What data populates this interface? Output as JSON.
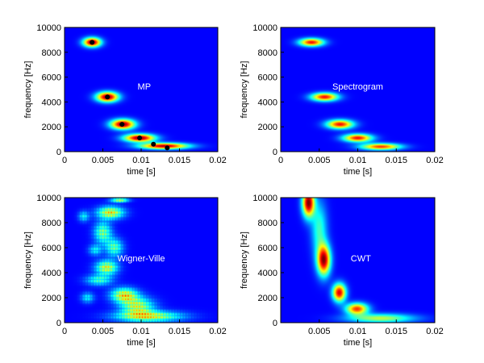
{
  "chart_data": [
    {
      "type": "heatmap",
      "title": "MP",
      "xlabel": "time [s]",
      "ylabel": "frequency [Hz]",
      "xlim": [
        0,
        0.02
      ],
      "ylim": [
        0,
        10000
      ],
      "xticks": [
        "0",
        "0.005",
        "0.01",
        "0.015",
        "0.02"
      ],
      "yticks": [
        "0",
        "2000",
        "4000",
        "6000",
        "8000",
        "10000"
      ],
      "colormap": "jet",
      "background": "#00008f",
      "blobs": [
        {
          "t": 0.0036,
          "f": 8800,
          "dt": 0.0008,
          "df": 260,
          "a": 1.0
        },
        {
          "t": 0.0056,
          "f": 4400,
          "dt": 0.001,
          "df": 280,
          "a": 1.0
        },
        {
          "t": 0.0076,
          "f": 2200,
          "dt": 0.0011,
          "df": 280,
          "a": 1.0
        },
        {
          "t": 0.0098,
          "f": 1100,
          "dt": 0.0014,
          "df": 220,
          "a": 1.0
        },
        {
          "t": 0.013,
          "f": 450,
          "dt": 0.0022,
          "df": 170,
          "a": 0.95
        }
      ],
      "markers": [
        {
          "t": 0.0036,
          "f": 8800
        },
        {
          "t": 0.0056,
          "f": 4400
        },
        {
          "t": 0.0075,
          "f": 2200
        },
        {
          "t": 0.0098,
          "f": 1100
        },
        {
          "t": 0.0116,
          "f": 600
        },
        {
          "t": 0.0134,
          "f": 300
        }
      ]
    },
    {
      "type": "heatmap",
      "title": "Spectrogram",
      "xlabel": "time [s]",
      "ylabel": "frequency [Hz]",
      "xlim": [
        0,
        0.02
      ],
      "ylim": [
        0,
        10000
      ],
      "xticks": [
        "0",
        "0.005",
        "0.01",
        "0.015",
        "0.02"
      ],
      "yticks": [
        "0",
        "2000",
        "4000",
        "6000",
        "8000",
        "10000"
      ],
      "colormap": "jet",
      "background": "#00008f",
      "blobs": [
        {
          "t": 0.004,
          "f": 8800,
          "dt": 0.0011,
          "df": 220,
          "a": 0.85
        },
        {
          "t": 0.0057,
          "f": 4400,
          "dt": 0.0012,
          "df": 230,
          "a": 0.85
        },
        {
          "t": 0.0077,
          "f": 2200,
          "dt": 0.0012,
          "df": 250,
          "a": 0.85
        },
        {
          "t": 0.01,
          "f": 1100,
          "dt": 0.0013,
          "df": 220,
          "a": 0.85
        },
        {
          "t": 0.013,
          "f": 400,
          "dt": 0.0018,
          "df": 180,
          "a": 0.8
        }
      ],
      "markers": []
    },
    {
      "type": "heatmap",
      "title": "Wigner-Ville",
      "xlabel": "time [s]",
      "ylabel": "frequency [Hz]",
      "xlim": [
        0,
        0.02
      ],
      "ylim": [
        0,
        10000
      ],
      "xticks": [
        "0",
        "0.005",
        "0.01",
        "0.015",
        "0.02"
      ],
      "yticks": [
        "0",
        "2000",
        "4000",
        "6000",
        "8000",
        "10000"
      ],
      "colormap": "jet",
      "background": "#00008f",
      "blobs": [
        {
          "t": 0.0072,
          "f": 9800,
          "dt": 0.0008,
          "df": 120,
          "a": 0.7
        },
        {
          "t": 0.006,
          "f": 8800,
          "dt": 0.0012,
          "df": 350,
          "a": 0.75
        },
        {
          "t": 0.005,
          "f": 7200,
          "dt": 0.0008,
          "df": 600,
          "a": 0.55
        },
        {
          "t": 0.0065,
          "f": 6000,
          "dt": 0.0008,
          "df": 500,
          "a": 0.5
        },
        {
          "t": 0.0055,
          "f": 4400,
          "dt": 0.001,
          "df": 400,
          "a": 0.7
        },
        {
          "t": 0.0045,
          "f": 3400,
          "dt": 0.0012,
          "df": 300,
          "a": 0.45
        },
        {
          "t": 0.0078,
          "f": 2200,
          "dt": 0.0012,
          "df": 400,
          "a": 0.75
        },
        {
          "t": 0.0095,
          "f": 1300,
          "dt": 0.0015,
          "df": 500,
          "a": 0.65
        },
        {
          "t": 0.011,
          "f": 500,
          "dt": 0.003,
          "df": 300,
          "a": 0.7
        },
        {
          "t": 0.003,
          "f": 2000,
          "dt": 0.0006,
          "df": 300,
          "a": 0.35
        },
        {
          "t": 0.0025,
          "f": 8500,
          "dt": 0.0005,
          "df": 300,
          "a": 0.35
        },
        {
          "t": 0.004,
          "f": 5800,
          "dt": 0.0006,
          "df": 300,
          "a": 0.35
        }
      ],
      "markers": []
    },
    {
      "type": "heatmap",
      "title": "CWT",
      "xlabel": "time [s]",
      "ylabel": "frequency [Hz]",
      "xlim": [
        0,
        0.02
      ],
      "ylim": [
        0,
        10000
      ],
      "xticks": [
        "0.005",
        "0.01",
        "0.015",
        "0.02"
      ],
      "yticks": [
        "0",
        "2000",
        "4000",
        "6000",
        "8000",
        "10000"
      ],
      "colormap": "jet",
      "background": "#00008f",
      "blobs": [
        {
          "t": 0.0036,
          "f": 9600,
          "dt": 0.00055,
          "df": 800,
          "a": 1.0
        },
        {
          "t": 0.0056,
          "f": 5000,
          "dt": 0.0006,
          "df": 850,
          "a": 0.95
        },
        {
          "t": 0.0076,
          "f": 2400,
          "dt": 0.0006,
          "df": 500,
          "a": 0.9
        },
        {
          "t": 0.0099,
          "f": 1100,
          "dt": 0.001,
          "df": 320,
          "a": 0.8
        },
        {
          "t": 0.013,
          "f": 350,
          "dt": 0.003,
          "df": 250,
          "a": 0.5
        },
        {
          "t": 0.005,
          "f": 7500,
          "dt": 0.0007,
          "df": 1500,
          "a": 0.35
        }
      ],
      "markers": []
    }
  ]
}
